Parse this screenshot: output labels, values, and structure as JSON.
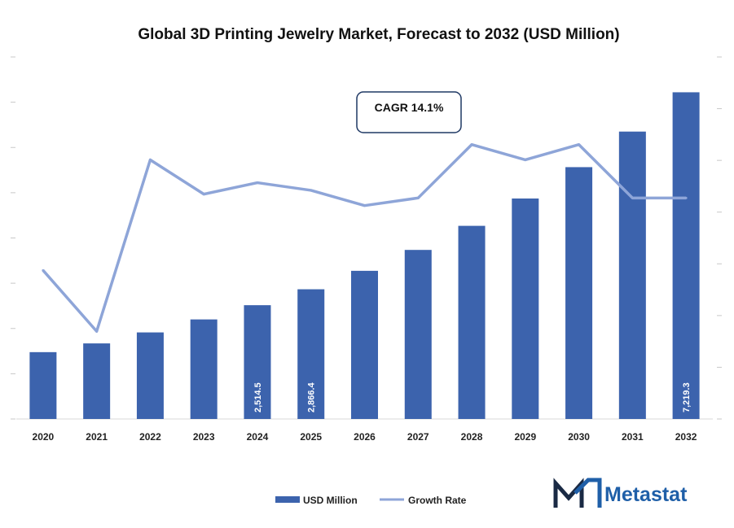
{
  "chart_data": {
    "type": "bar",
    "title": "Global 3D Printing Jewelry Market, Forecast to 2032 (USD Million)",
    "categories": [
      "2020",
      "2021",
      "2022",
      "2023",
      "2024",
      "2025",
      "2026",
      "2027",
      "2028",
      "2029",
      "2030",
      "2031",
      "2032"
    ],
    "series": [
      {
        "name": "USD Million",
        "type": "bar",
        "values": [
          1477,
          1670,
          1913,
          2200,
          2514.5,
          2866.4,
          3274,
          3736,
          4268,
          4872,
          5565,
          6351,
          7219.3
        ],
        "data_labels": [
          "",
          "",
          "",
          "",
          "2,514.5",
          "2,866.4",
          "",
          "",
          "",
          "",
          "",
          "",
          "7,219.3"
        ],
        "color": "#3c63ad"
      },
      {
        "name": "Growth Rate",
        "type": "line",
        "values": [
          12.4,
          10.8,
          15.3,
          14.4,
          14.7,
          14.5,
          14.1,
          14.3,
          15.7,
          15.3,
          15.7,
          14.3,
          14.3
        ],
        "color": "#8ea5d8"
      }
    ],
    "ylim": [
      0,
      8000
    ],
    "y2lim": [
      8.5,
      18
    ],
    "grid": false,
    "legend_position": "bottom"
  },
  "annotation": {
    "cagr_label": "CAGR 14.1%"
  },
  "logo": {
    "text": "Metastat"
  }
}
